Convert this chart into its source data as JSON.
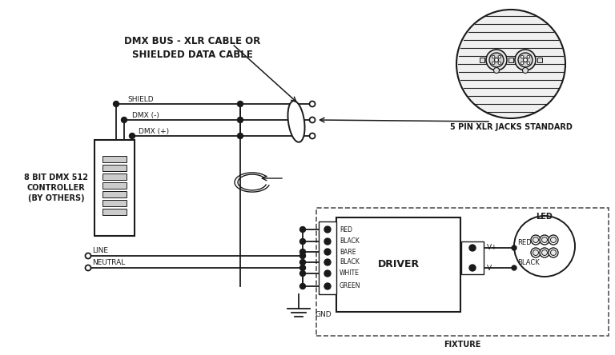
{
  "bg_color": "#ffffff",
  "line_color": "#1a1a1a",
  "title_dmx": "DMX BUS - XLR CABLE OR\nSHIELDED DATA CABLE",
  "label_controller": "8 BIT DMX 512\nCONTROLLER\n(BY OTHERS)",
  "label_shield": "SHIELD",
  "label_dmx_minus": "DMX (-)",
  "label_dmx_plus": "DMX (+)",
  "label_line": "LINE",
  "label_neutral": "NEUTRAL",
  "label_red": "RED",
  "label_black1": "BLACK",
  "label_bare": "BARE",
  "label_black2": "BLACK",
  "label_white": "WHITE",
  "label_green": "GREEN",
  "label_gnd": "GND",
  "label_driver": "DRIVER",
  "label_vplus": "V+",
  "label_vminus": "V-",
  "label_vred": "RED",
  "label_vblack": "BLACK",
  "label_led": "LED",
  "label_fixture": "FIXTURE",
  "label_5pin": "5 PIN XLR JACKS STANDARD"
}
